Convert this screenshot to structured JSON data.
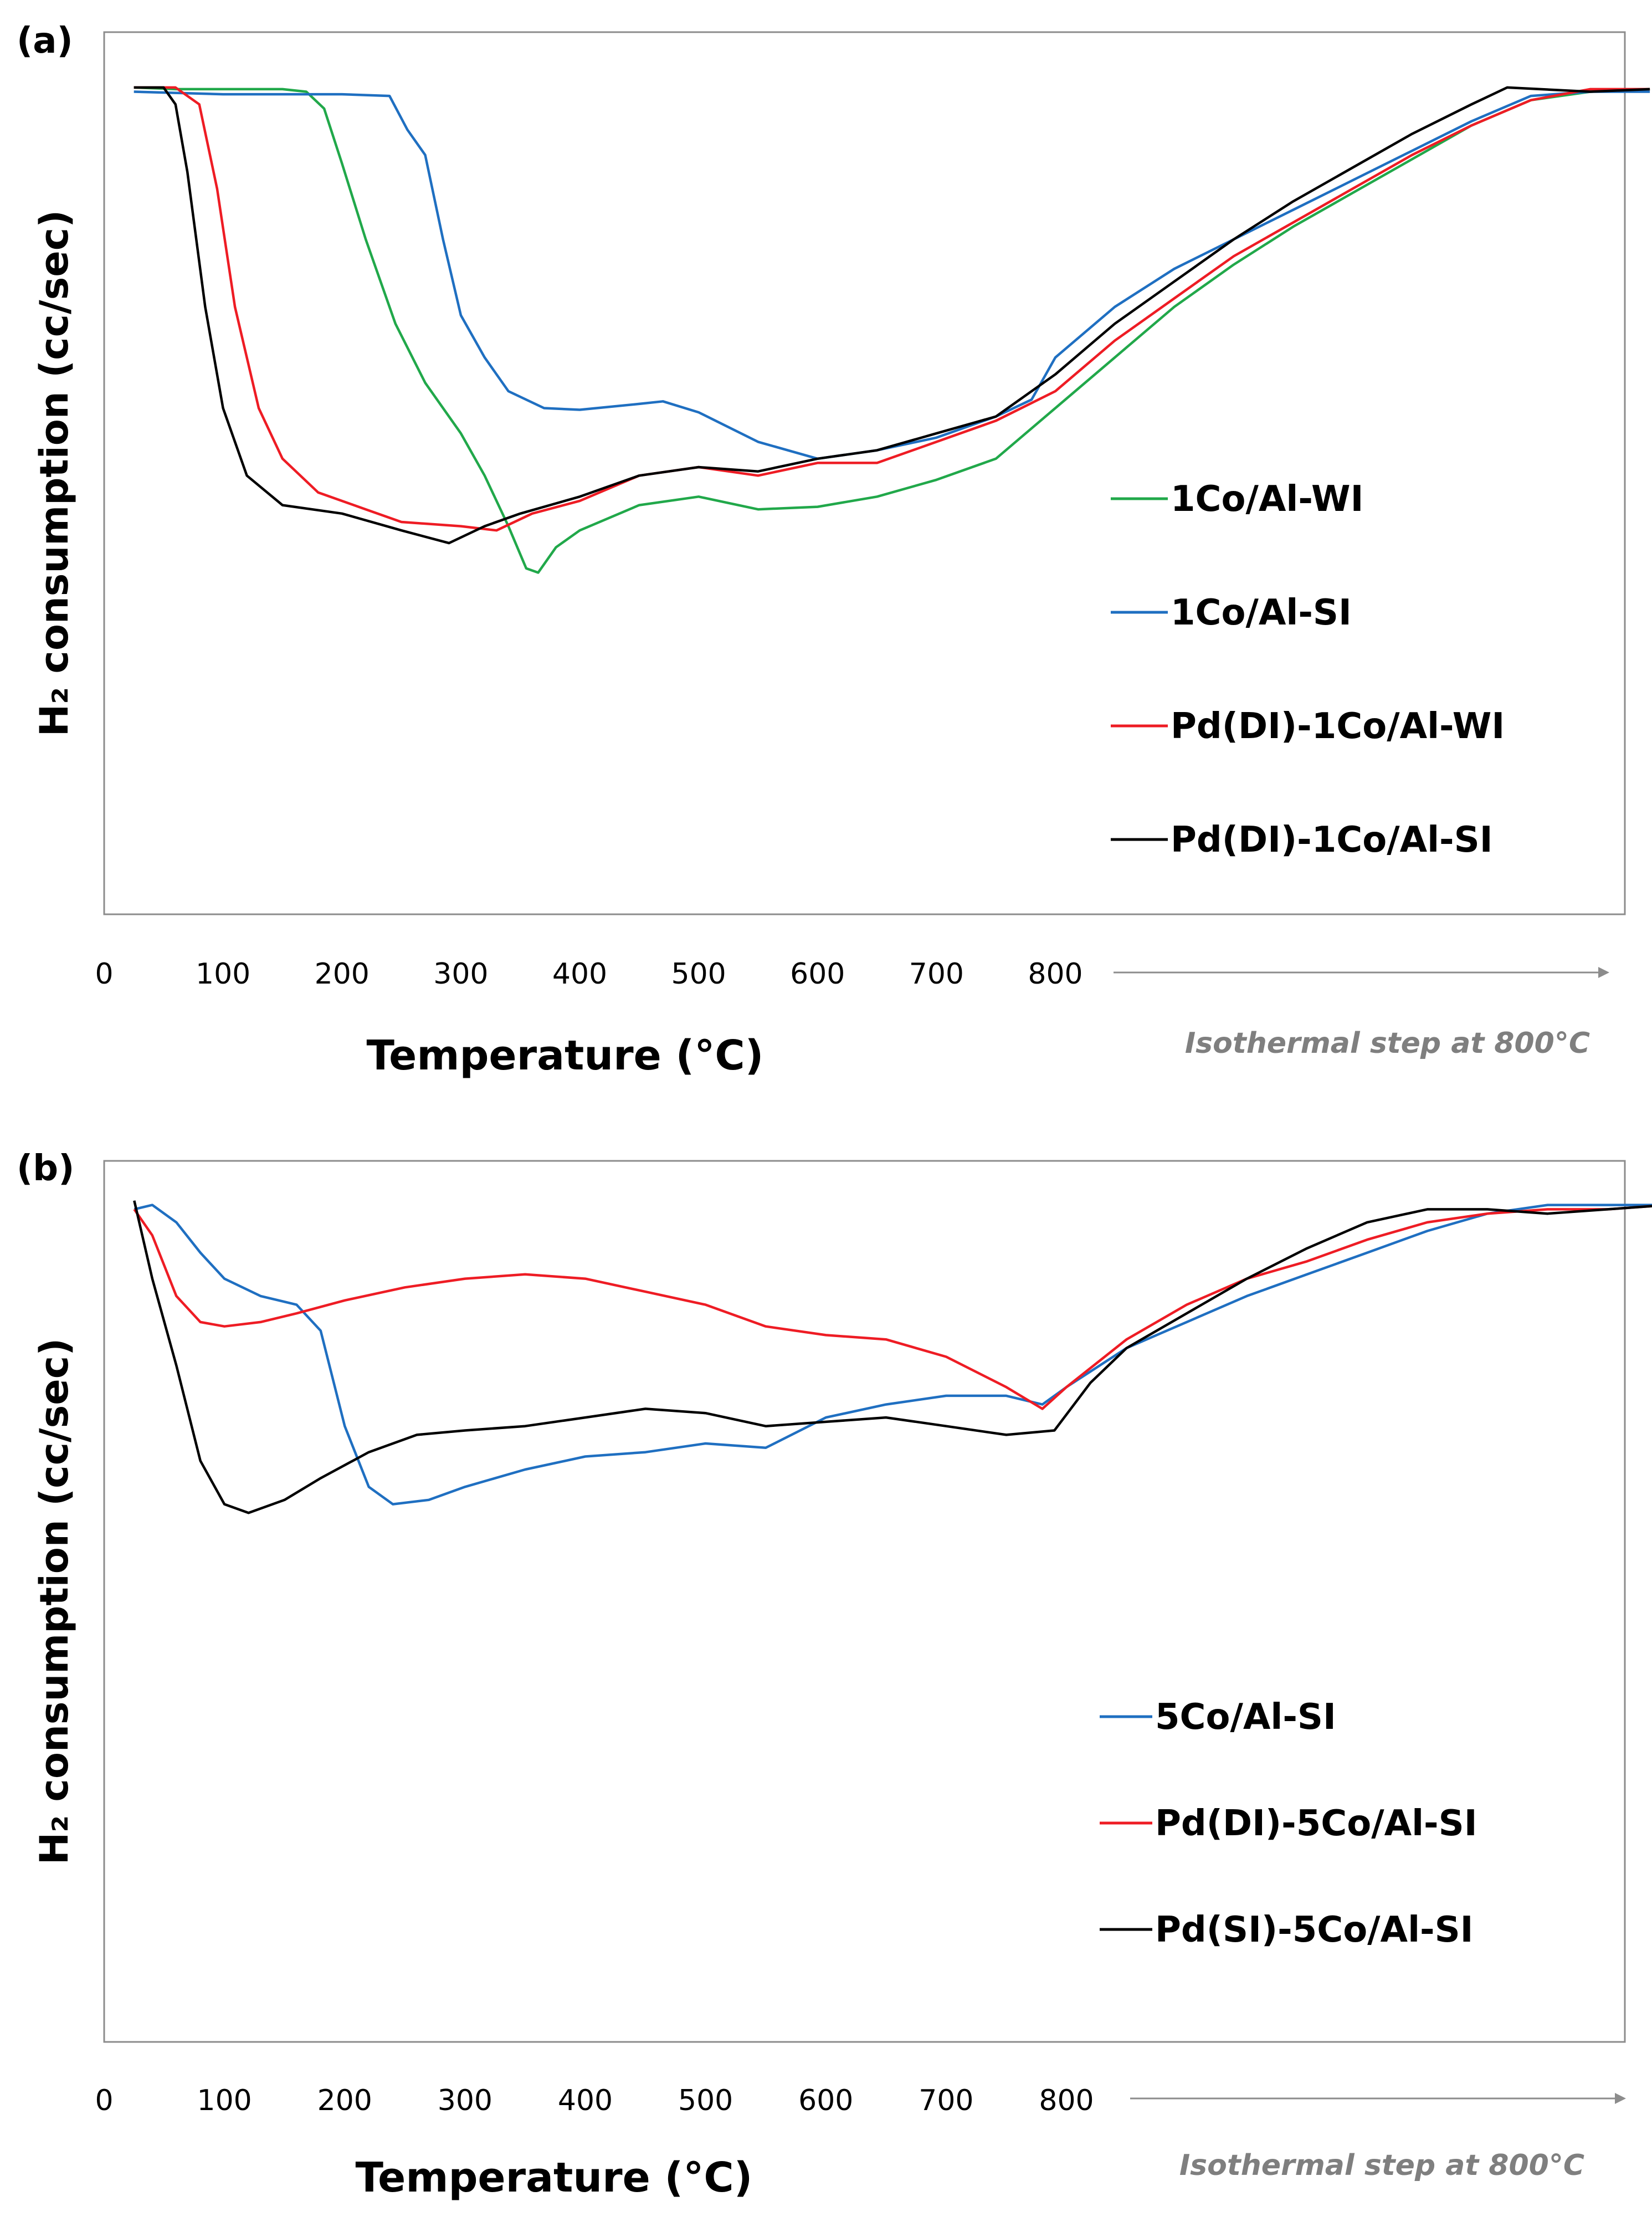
{
  "colors": {
    "green": "#21a84a",
    "blue": "#1f6fc1",
    "red": "#ee1c24",
    "black": "#000000",
    "axis": "#8c8c8c",
    "iso_text": "#7f7f7f"
  },
  "chart_data": [
    {
      "type": "line",
      "panel_label": "(a)",
      "xlabel": "Temperature (°C)",
      "ylabel": "H₂ consumption (cc/sec)",
      "x_ticks": [
        "0",
        "100",
        "200",
        "300",
        "400",
        "500",
        "600",
        "700",
        "800"
      ],
      "xlim": [
        0,
        1300
      ],
      "ylim": [
        0,
        1
      ],
      "isothermal_note": "Isothermal step at 800°C",
      "isothermal_range": [
        850,
        1300
      ],
      "series": [
        {
          "name": "1Co/Al-WI",
          "color": "#21a84a",
          "points": [
            [
              25,
              0.98
            ],
            [
              60,
              0.978
            ],
            [
              100,
              0.978
            ],
            [
              150,
              0.978
            ],
            [
              170,
              0.975
            ],
            [
              185,
              0.955
            ],
            [
              200,
              0.89
            ],
            [
              220,
              0.8
            ],
            [
              245,
              0.7
            ],
            [
              270,
              0.63
            ],
            [
              300,
              0.57
            ],
            [
              320,
              0.52
            ],
            [
              340,
              0.46
            ],
            [
              355,
              0.41
            ],
            [
              365,
              0.405
            ],
            [
              380,
              0.435
            ],
            [
              400,
              0.455
            ],
            [
              450,
              0.485
            ],
            [
              500,
              0.495
            ],
            [
              550,
              0.48
            ],
            [
              600,
              0.483
            ],
            [
              650,
              0.495
            ],
            [
              700,
              0.515
            ],
            [
              750,
              0.54
            ],
            [
              800,
              0.6
            ],
            [
              850,
              0.66
            ],
            [
              900,
              0.72
            ],
            [
              950,
              0.77
            ],
            [
              1000,
              0.815
            ],
            [
              1050,
              0.855
            ],
            [
              1100,
              0.895
            ],
            [
              1150,
              0.935
            ],
            [
              1200,
              0.965
            ],
            [
              1250,
              0.975
            ],
            [
              1300,
              0.978
            ]
          ]
        },
        {
          "name": "1Co/Al-SI",
          "color": "#1f6fc1",
          "points": [
            [
              25,
              0.975
            ],
            [
              100,
              0.972
            ],
            [
              150,
              0.972
            ],
            [
              200,
              0.972
            ],
            [
              240,
              0.97
            ],
            [
              255,
              0.93
            ],
            [
              270,
              0.9
            ],
            [
              285,
              0.8
            ],
            [
              300,
              0.71
            ],
            [
              320,
              0.66
            ],
            [
              340,
              0.62
            ],
            [
              370,
              0.6
            ],
            [
              400,
              0.598
            ],
            [
              450,
              0.605
            ],
            [
              470,
              0.608
            ],
            [
              500,
              0.595
            ],
            [
              550,
              0.56
            ],
            [
              600,
              0.54
            ],
            [
              650,
              0.55
            ],
            [
              700,
              0.565
            ],
            [
              750,
              0.59
            ],
            [
              780,
              0.61
            ],
            [
              800,
              0.66
            ],
            [
              850,
              0.72
            ],
            [
              900,
              0.765
            ],
            [
              950,
              0.8
            ],
            [
              1000,
              0.835
            ],
            [
              1050,
              0.87
            ],
            [
              1100,
              0.905
            ],
            [
              1150,
              0.94
            ],
            [
              1200,
              0.97
            ],
            [
              1250,
              0.975
            ],
            [
              1300,
              0.975
            ]
          ]
        },
        {
          "name": "Pd(DI)-1Co/Al-WI",
          "color": "#ee1c24",
          "points": [
            [
              25,
              0.98
            ],
            [
              60,
              0.98
            ],
            [
              80,
              0.96
            ],
            [
              95,
              0.86
            ],
            [
              110,
              0.72
            ],
            [
              130,
              0.6
            ],
            [
              150,
              0.54
            ],
            [
              180,
              0.5
            ],
            [
              220,
              0.48
            ],
            [
              250,
              0.465
            ],
            [
              300,
              0.46
            ],
            [
              330,
              0.455
            ],
            [
              360,
              0.475
            ],
            [
              400,
              0.49
            ],
            [
              450,
              0.52
            ],
            [
              500,
              0.53
            ],
            [
              550,
              0.52
            ],
            [
              600,
              0.535
            ],
            [
              650,
              0.535
            ],
            [
              700,
              0.56
            ],
            [
              750,
              0.585
            ],
            [
              800,
              0.62
            ],
            [
              850,
              0.68
            ],
            [
              900,
              0.73
            ],
            [
              950,
              0.78
            ],
            [
              1000,
              0.82
            ],
            [
              1050,
              0.86
            ],
            [
              1100,
              0.9
            ],
            [
              1150,
              0.935
            ],
            [
              1200,
              0.965
            ],
            [
              1250,
              0.978
            ],
            [
              1300,
              0.978
            ]
          ]
        },
        {
          "name": "Pd(DI)-1Co/Al-SI",
          "color": "#000000",
          "points": [
            [
              25,
              0.98
            ],
            [
              50,
              0.98
            ],
            [
              60,
              0.96
            ],
            [
              70,
              0.88
            ],
            [
              85,
              0.72
            ],
            [
              100,
              0.6
            ],
            [
              120,
              0.52
            ],
            [
              150,
              0.485
            ],
            [
              200,
              0.475
            ],
            [
              250,
              0.455
            ],
            [
              290,
              0.44
            ],
            [
              320,
              0.46
            ],
            [
              350,
              0.475
            ],
            [
              400,
              0.495
            ],
            [
              450,
              0.52
            ],
            [
              500,
              0.53
            ],
            [
              550,
              0.525
            ],
            [
              600,
              0.54
            ],
            [
              650,
              0.55
            ],
            [
              700,
              0.57
            ],
            [
              750,
              0.59
            ],
            [
              800,
              0.64
            ],
            [
              850,
              0.7
            ],
            [
              900,
              0.75
            ],
            [
              950,
              0.8
            ],
            [
              1000,
              0.845
            ],
            [
              1050,
              0.885
            ],
            [
              1100,
              0.925
            ],
            [
              1150,
              0.96
            ],
            [
              1180,
              0.98
            ],
            [
              1250,
              0.975
            ],
            [
              1300,
              0.978
            ]
          ]
        }
      ],
      "legend": [
        "1Co/Al-WI",
        "1Co/Al-SI",
        "Pd(DI)-1Co/Al-WI",
        "Pd(DI)-1Co/Al-SI"
      ]
    },
    {
      "type": "line",
      "panel_label": "(b)",
      "xlabel": "Temperature (°C)",
      "ylabel": "H₂ consumption (cc/sec)",
      "x_ticks": [
        "0",
        "100",
        "200",
        "300",
        "400",
        "500",
        "600",
        "700",
        "800"
      ],
      "xlim": [
        0,
        1300
      ],
      "ylim": [
        0,
        1
      ],
      "isothermal_note": "Isothermal step at 800°C",
      "isothermal_range": [
        850,
        1300
      ],
      "series": [
        {
          "name": "5Co/Al-SI",
          "color": "#1f6fc1",
          "points": [
            [
              25,
              0.96
            ],
            [
              40,
              0.965
            ],
            [
              60,
              0.945
            ],
            [
              80,
              0.91
            ],
            [
              100,
              0.88
            ],
            [
              130,
              0.86
            ],
            [
              160,
              0.85
            ],
            [
              180,
              0.82
            ],
            [
              200,
              0.71
            ],
            [
              220,
              0.64
            ],
            [
              240,
              0.62
            ],
            [
              270,
              0.625
            ],
            [
              300,
              0.64
            ],
            [
              350,
              0.66
            ],
            [
              400,
              0.675
            ],
            [
              450,
              0.68
            ],
            [
              500,
              0.69
            ],
            [
              550,
              0.685
            ],
            [
              600,
              0.72
            ],
            [
              650,
              0.735
            ],
            [
              700,
              0.745
            ],
            [
              750,
              0.745
            ],
            [
              780,
              0.735
            ],
            [
              800,
              0.755
            ],
            [
              850,
              0.8
            ],
            [
              900,
              0.83
            ],
            [
              950,
              0.86
            ],
            [
              1000,
              0.885
            ],
            [
              1050,
              0.91
            ],
            [
              1100,
              0.935
            ],
            [
              1150,
              0.955
            ],
            [
              1200,
              0.965
            ],
            [
              1250,
              0.965
            ],
            [
              1300,
              0.965
            ]
          ]
        },
        {
          "name": "Pd(DI)-5Co/Al-SI",
          "color": "#ee1c24",
          "points": [
            [
              25,
              0.96
            ],
            [
              40,
              0.93
            ],
            [
              60,
              0.86
            ],
            [
              80,
              0.83
            ],
            [
              100,
              0.825
            ],
            [
              130,
              0.83
            ],
            [
              160,
              0.84
            ],
            [
              200,
              0.855
            ],
            [
              250,
              0.87
            ],
            [
              300,
              0.88
            ],
            [
              350,
              0.885
            ],
            [
              400,
              0.88
            ],
            [
              450,
              0.865
            ],
            [
              500,
              0.85
            ],
            [
              550,
              0.825
            ],
            [
              600,
              0.815
            ],
            [
              650,
              0.81
            ],
            [
              700,
              0.79
            ],
            [
              750,
              0.755
            ],
            [
              780,
              0.73
            ],
            [
              800,
              0.755
            ],
            [
              850,
              0.81
            ],
            [
              900,
              0.85
            ],
            [
              950,
              0.88
            ],
            [
              1000,
              0.9
            ],
            [
              1050,
              0.925
            ],
            [
              1100,
              0.945
            ],
            [
              1150,
              0.955
            ],
            [
              1200,
              0.96
            ],
            [
              1250,
              0.96
            ],
            [
              1300,
              0.965
            ]
          ]
        },
        {
          "name": "Pd(SI)-5Co/Al-SI",
          "color": "#000000",
          "points": [
            [
              25,
              0.97
            ],
            [
              40,
              0.88
            ],
            [
              60,
              0.78
            ],
            [
              80,
              0.67
            ],
            [
              100,
              0.62
            ],
            [
              120,
              0.61
            ],
            [
              150,
              0.625
            ],
            [
              180,
              0.65
            ],
            [
              220,
              0.68
            ],
            [
              260,
              0.7
            ],
            [
              300,
              0.705
            ],
            [
              350,
              0.71
            ],
            [
              400,
              0.72
            ],
            [
              450,
              0.73
            ],
            [
              500,
              0.725
            ],
            [
              550,
              0.71
            ],
            [
              600,
              0.715
            ],
            [
              650,
              0.72
            ],
            [
              700,
              0.71
            ],
            [
              750,
              0.7
            ],
            [
              790,
              0.705
            ],
            [
              820,
              0.76
            ],
            [
              850,
              0.8
            ],
            [
              900,
              0.84
            ],
            [
              950,
              0.88
            ],
            [
              1000,
              0.915
            ],
            [
              1050,
              0.945
            ],
            [
              1100,
              0.96
            ],
            [
              1150,
              0.96
            ],
            [
              1200,
              0.955
            ],
            [
              1250,
              0.96
            ],
            [
              1300,
              0.965
            ]
          ]
        }
      ],
      "legend": [
        "5Co/Al-SI",
        "Pd(DI)-5Co/Al-SI",
        "Pd(SI)-5Co/Al-SI"
      ]
    }
  ]
}
